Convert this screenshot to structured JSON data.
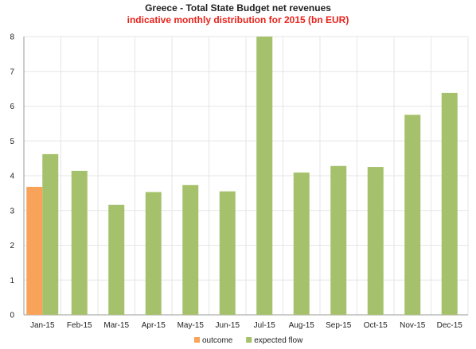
{
  "chart_data": {
    "type": "bar",
    "title": "Greece - Total State Budget net revenues",
    "subtitle": "indicative monthly distribution for 2015 (bn EUR)",
    "categories": [
      "Jan-15",
      "Feb-15",
      "Mar-15",
      "Apr-15",
      "May-15",
      "Jun-15",
      "Jul-15",
      "Aug-15",
      "Sep-15",
      "Oct-15",
      "Nov-15",
      "Dec-15"
    ],
    "series": [
      {
        "name": "outcome",
        "color": "#f9a35a",
        "values": [
          3.68,
          null,
          null,
          null,
          null,
          null,
          null,
          null,
          null,
          null,
          null,
          null
        ]
      },
      {
        "name": "expected flow",
        "color": "#a6c16c",
        "values": [
          4.62,
          4.14,
          3.16,
          3.53,
          3.73,
          3.55,
          8.0,
          4.09,
          4.28,
          4.25,
          5.75,
          6.38
        ]
      }
    ],
    "ylim": [
      0,
      8
    ],
    "yticks": [
      0,
      1,
      2,
      3,
      4,
      5,
      6,
      7,
      8
    ],
    "grid": true,
    "legend_position": "bottom"
  }
}
